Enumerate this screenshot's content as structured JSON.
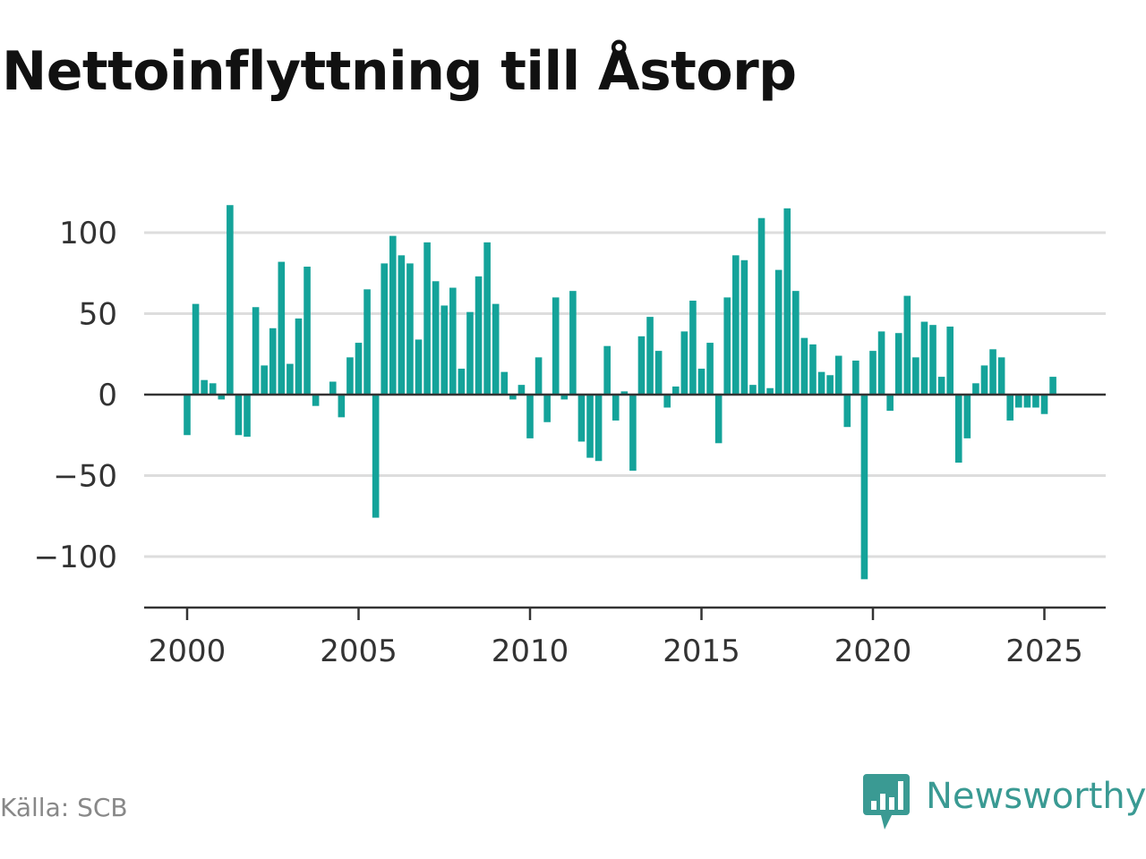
{
  "title": "Nettoinflyttning till Åstorp",
  "source": "Källa: SCB",
  "brand": {
    "name": "Newsworthy",
    "icon": "bar-chart-speech-bubble-icon",
    "color": "#3a9a93"
  },
  "chart_data": {
    "type": "bar",
    "title": "Nettoinflyttning till Åstorp",
    "xlabel": "",
    "ylabel": "",
    "bar_color": "#14a39a",
    "grid": true,
    "ylim": [
      -130,
      120
    ],
    "xlim": [
      1997.5,
      2027.2
    ],
    "y_ticks": [
      -100,
      -50,
      0,
      50,
      100
    ],
    "y_tick_labels": [
      "−100",
      "−50",
      "0",
      "50",
      "100"
    ],
    "x_ticks": [
      2000,
      2005,
      2010,
      2015,
      2020,
      2025
    ],
    "x_tick_labels": [
      "2000",
      "2005",
      "2010",
      "2015",
      "2020",
      "2025"
    ],
    "frequency": "quarterly",
    "start": "2000-Q1",
    "values": [
      -25,
      56,
      9,
      7,
      -3,
      117,
      -25,
      -26,
      54,
      18,
      41,
      82,
      19,
      47,
      79,
      -7,
      0,
      8,
      -14,
      23,
      32,
      65,
      -76,
      81,
      98,
      86,
      81,
      34,
      94,
      70,
      55,
      66,
      16,
      51,
      73,
      94,
      56,
      14,
      -3,
      6,
      -27,
      23,
      -17,
      60,
      -3,
      64,
      -29,
      -39,
      -41,
      30,
      -16,
      2,
      -47,
      36,
      48,
      27,
      -8,
      5,
      39,
      58,
      16,
      32,
      -30,
      60,
      86,
      83,
      6,
      109,
      4,
      77,
      115,
      64,
      35,
      31,
      14,
      12,
      24,
      -20,
      21,
      -114,
      27,
      39,
      -10,
      38,
      61,
      23,
      45,
      43,
      11,
      42,
      -42,
      -27,
      7,
      18,
      28,
      23,
      -16,
      -8,
      -8,
      -8,
      -12,
      11
    ]
  }
}
